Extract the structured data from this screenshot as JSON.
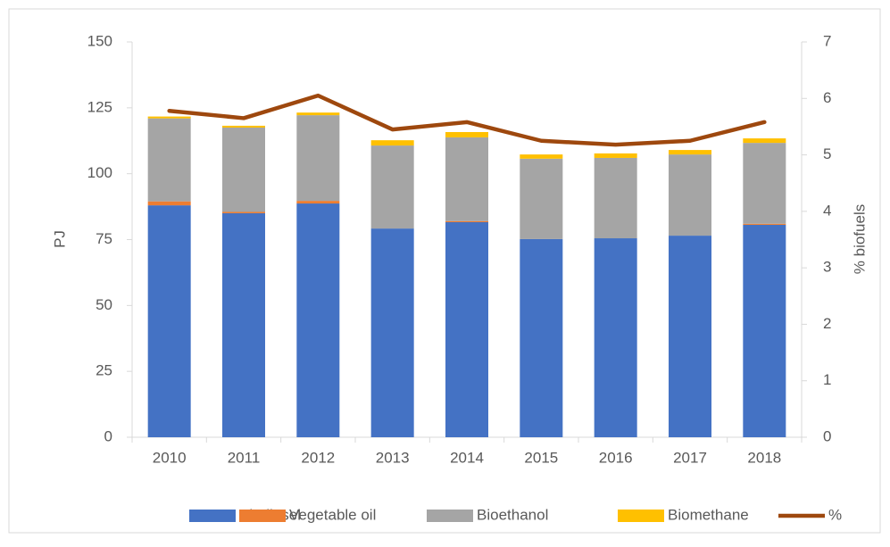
{
  "chart_data": {
    "type": "bar",
    "categories": [
      "2010",
      "2011",
      "2012",
      "2013",
      "2014",
      "2015",
      "2016",
      "2017",
      "2018"
    ],
    "stacked": true,
    "series": [
      {
        "name": "Biodiesel",
        "color": "#4472c4",
        "values": [
          88,
          85,
          88.7,
          79.2,
          81.6,
          75.2,
          75.5,
          76.5,
          80.6
        ]
      },
      {
        "name": "Vegetable oil",
        "color": "#ed7d31",
        "values": [
          1.5,
          0.5,
          1,
          0,
          0.4,
          0,
          0,
          0,
          0.4
        ]
      },
      {
        "name": "Bioethanol",
        "color": "#a5a5a5",
        "values": [
          31.5,
          32,
          32.5,
          31.5,
          31.8,
          30.5,
          30.5,
          30.8,
          30.7
        ]
      },
      {
        "name": "Biomethane",
        "color": "#ffc000",
        "values": [
          0.7,
          0.7,
          1,
          2,
          2,
          1.6,
          1.7,
          1.7,
          1.7
        ]
      },
      {
        "name": "%",
        "color": "#9e480e",
        "type": "line",
        "axis": "y2",
        "values": [
          5.78,
          5.65,
          6.05,
          5.45,
          5.58,
          5.25,
          5.18,
          5.25,
          5.58
        ]
      }
    ],
    "ylabel": "PJ",
    "y2label": "% biofuels",
    "ylim": [
      0,
      150
    ],
    "yticks": [
      0,
      25,
      50,
      75,
      100,
      125,
      150
    ],
    "y2lim": [
      0,
      7
    ],
    "y2ticks": [
      0,
      1,
      2,
      3,
      4,
      5,
      6,
      7
    ],
    "grid": false,
    "legend": "bottom"
  }
}
